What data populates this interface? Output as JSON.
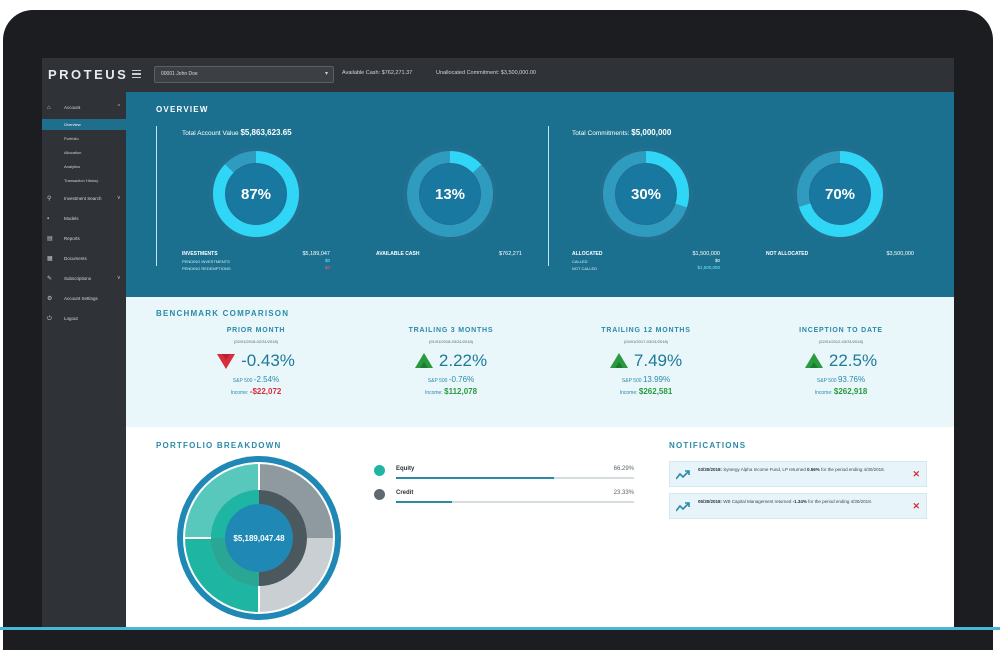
{
  "app": {
    "logo": "PROTEUS",
    "account_select": "00001 John Doe",
    "available_cash": "Available Cash: $762,271.37",
    "unallocated": "Unallocated Commitment: $3,500,000.00"
  },
  "sidebar": {
    "items": [
      {
        "label": "Account",
        "icon": "home-icon",
        "caret": "^"
      },
      {
        "label": "Investment Search",
        "icon": "search-icon",
        "caret": "v"
      },
      {
        "label": "Models",
        "icon": "models-icon"
      },
      {
        "label": "Reports",
        "icon": "reports-icon"
      },
      {
        "label": "Documents",
        "icon": "documents-icon"
      },
      {
        "label": "Subscriptions",
        "icon": "subscriptions-icon",
        "caret": "v"
      },
      {
        "label": "Account Settings",
        "icon": "gear-icon"
      },
      {
        "label": "Logout",
        "icon": "logout-icon"
      }
    ],
    "sub_items": [
      {
        "label": "Overview",
        "active": true
      },
      {
        "label": "Portfolio"
      },
      {
        "label": "Allocation"
      },
      {
        "label": "Analytics"
      },
      {
        "label": "Transaction History"
      }
    ]
  },
  "overview": {
    "title": "OVERVIEW",
    "total_account_label": "Total Account Value",
    "total_account_value": "$5,863,623.65",
    "total_commitments_label": "Total Commitments:",
    "total_commitments_value": "$5,000,000",
    "donuts": [
      {
        "pct_label": "87%",
        "pct": 0.87
      },
      {
        "pct_label": "13%",
        "pct": 0.13
      },
      {
        "pct_label": "30%",
        "pct": 0.3
      },
      {
        "pct_label": "70%",
        "pct": 0.7
      }
    ],
    "investments_label": "INVESTMENTS",
    "investments_value": "$5,189,047",
    "pending_investments_label": "PENDING INVESTMENTS",
    "pending_investments_value": "$0",
    "pending_redemptions_label": "PENDING REDEMPTIONS",
    "pending_redemptions_value": "$0",
    "available_cash_label": "AVAILABLE CASH",
    "available_cash_value": "$762,271",
    "allocated_label": "ALLOCATED",
    "allocated_value": "$1,500,000",
    "called_label": "CALLED",
    "called_value": "$0",
    "not_called_label": "NOT CALLED",
    "not_called_value": "$1,500,000",
    "not_allocated_label": "NOT ALLOCATED",
    "not_allocated_value": "$3,500,000"
  },
  "benchmark": {
    "title": "BENCHMARK COMPARISON",
    "columns": [
      {
        "head": "PRIOR MONTH",
        "range": "(02/01/2018-02/31/2018)",
        "pct": "-0.43%",
        "direction": "down",
        "sp_label": "S&P 500",
        "sp": "-2.54%",
        "income_label": "Income:",
        "income": "-$22,072"
      },
      {
        "head": "TRAILING 3 MONTHS",
        "range": "(01/01/2018-03/31/2018)",
        "pct": "2.22%",
        "direction": "up",
        "sp_label": "S&P 500",
        "sp": "-0.76%",
        "income_label": "Income:",
        "income": "$112,078"
      },
      {
        "head": "TRAILING 12 MONTHS",
        "range": "(04/01/2017-03/31/2018)",
        "pct": "7.49%",
        "direction": "up",
        "sp_label": "S&P 500",
        "sp": "13.99%",
        "income_label": "Income:",
        "income": "$262,581"
      },
      {
        "head": "INCEPTION TO DATE",
        "range": "(02/01/2012-03/31/2018)",
        "pct": "22.5%",
        "direction": "up",
        "sp_label": "S&P 500",
        "sp": "93.76%",
        "income_label": "Income:",
        "income": "$262,918"
      }
    ]
  },
  "portfolio": {
    "title": "PORTFOLIO BREAKDOWN",
    "center_value": "$5,189,047.48",
    "legend": [
      {
        "label": "Equity",
        "pct_label": "66.29%",
        "pct": 0.6629,
        "color": "#1fb5a3"
      },
      {
        "label": "Credit",
        "pct_label": "23.33%",
        "pct": 0.2333,
        "color": "#5f6a70"
      }
    ]
  },
  "notifications": {
    "title": "NOTIFICATIONS",
    "items": [
      {
        "date": "03/30/2018:",
        "text_a": "Synergy Alpha Income Fund, LP returned",
        "value": "0.56%",
        "text_b": "for the period ending 4/30/2018.",
        "close": "✕"
      },
      {
        "date": "05/30/2018:",
        "text_a": "WB Capital Management returned",
        "value": "-1.34%",
        "text_b": "for the period ending 4/30/2018.",
        "close": "✕"
      }
    ]
  },
  "colors": {
    "overview_bg": "#1b708f",
    "donut_track": "#2f9cbf",
    "donut_fill": "#2fd6f5",
    "donut_center": "#1878a0",
    "negative": "#d82d3c",
    "positive": "#2a9a3e"
  }
}
